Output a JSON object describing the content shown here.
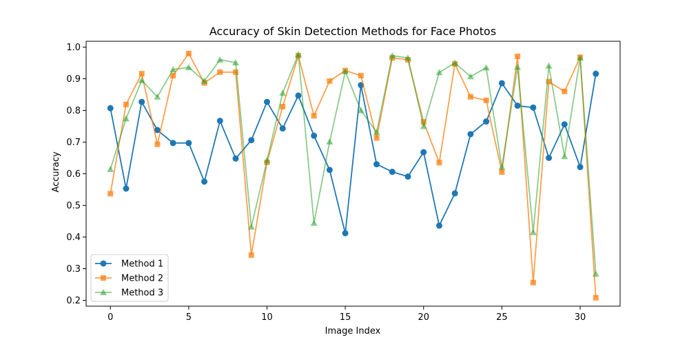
{
  "chart_data": {
    "type": "line",
    "title": "Accuracy of Skin Detection Methods for Face Photos",
    "xlabel": "Image Index",
    "ylabel": "Accuracy",
    "xlim": [
      -1.55,
      32.55
    ],
    "ylim": [
      0.1815,
      1.0185
    ],
    "xticks": [
      0,
      5,
      10,
      15,
      20,
      25,
      30
    ],
    "yticks": [
      0.2,
      0.3,
      0.4,
      0.5,
      0.6,
      0.7,
      0.8,
      0.9,
      1.0
    ],
    "grid": false,
    "legend_position": "lower-left",
    "x": [
      0,
      1,
      2,
      3,
      4,
      5,
      6,
      7,
      8,
      9,
      10,
      11,
      12,
      13,
      14,
      15,
      16,
      17,
      18,
      19,
      20,
      21,
      22,
      23,
      24,
      25,
      26,
      27,
      28,
      29,
      30,
      31
    ],
    "series": [
      {
        "name": "Method 1",
        "color": "#1f77b4",
        "marker": "circle",
        "opacity": 1.0,
        "values": [
          0.807,
          0.553,
          0.827,
          0.738,
          0.697,
          0.697,
          0.575,
          0.767,
          0.648,
          0.706,
          0.827,
          0.743,
          0.847,
          0.72,
          0.612,
          0.412,
          0.88,
          0.63,
          0.606,
          0.591,
          0.668,
          0.436,
          0.538,
          0.725,
          0.765,
          0.886,
          0.815,
          0.809,
          0.65,
          0.756,
          0.621,
          0.916
        ]
      },
      {
        "name": "Method 2",
        "color": "#ff7f0e",
        "marker": "square",
        "opacity": 0.75,
        "values": [
          0.537,
          0.819,
          0.916,
          0.693,
          0.91,
          0.98,
          0.887,
          0.921,
          0.921,
          0.343,
          0.636,
          0.812,
          0.973,
          0.783,
          0.893,
          0.926,
          0.91,
          0.713,
          0.966,
          0.96,
          0.764,
          0.635,
          0.947,
          0.843,
          0.832,
          0.605,
          0.971,
          0.256,
          0.891,
          0.86,
          0.968,
          0.208
        ]
      },
      {
        "name": "Method 3",
        "color": "#2ca02c",
        "marker": "triangle",
        "opacity": 0.55,
        "values": [
          0.614,
          0.774,
          0.895,
          0.843,
          0.929,
          0.936,
          0.893,
          0.96,
          0.951,
          0.432,
          0.642,
          0.855,
          0.977,
          0.444,
          0.701,
          0.923,
          0.8,
          0.731,
          0.973,
          0.966,
          0.75,
          0.92,
          0.95,
          0.907,
          0.935,
          0.621,
          0.937,
          0.415,
          0.941,
          0.655,
          0.966,
          0.283
        ]
      }
    ]
  }
}
